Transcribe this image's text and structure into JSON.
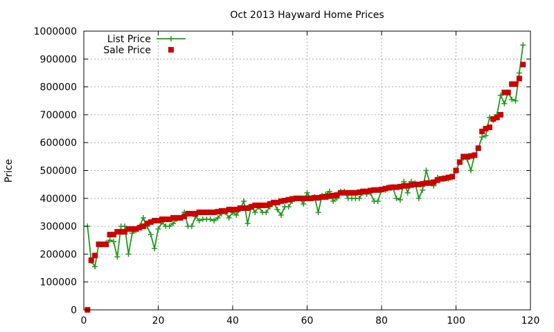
{
  "chart_data": {
    "type": "line",
    "title": "Oct 2013 Hayward Home Prices",
    "xlabel": "",
    "ylabel": "Price",
    "xlim": [
      0,
      120
    ],
    "ylim": [
      0,
      1000000
    ],
    "xticks": [
      0,
      20,
      40,
      60,
      80,
      100,
      120
    ],
    "yticks": [
      0,
      100000,
      200000,
      300000,
      400000,
      500000,
      600000,
      700000,
      800000,
      900000,
      1000000
    ],
    "grid": true,
    "legend_position": "top-left",
    "colors": {
      "list": "#1a9a1a",
      "sale": "#cc0000"
    },
    "series": [
      {
        "name": "List Price",
        "style": "line-plus",
        "x": [
          1,
          2,
          3,
          4,
          5,
          6,
          7,
          8,
          9,
          10,
          11,
          12,
          13,
          14,
          15,
          16,
          17,
          18,
          19,
          20,
          21,
          22,
          23,
          24,
          25,
          26,
          27,
          28,
          29,
          30,
          31,
          32,
          33,
          34,
          35,
          36,
          37,
          38,
          39,
          40,
          41,
          42,
          43,
          44,
          45,
          46,
          47,
          48,
          49,
          50,
          51,
          52,
          53,
          54,
          55,
          56,
          57,
          58,
          59,
          60,
          61,
          62,
          63,
          64,
          65,
          66,
          67,
          68,
          69,
          70,
          71,
          72,
          73,
          74,
          75,
          76,
          77,
          78,
          79,
          80,
          81,
          82,
          83,
          84,
          85,
          86,
          87,
          88,
          89,
          90,
          91,
          92,
          93,
          94,
          95,
          96,
          97,
          98,
          99,
          100,
          101,
          102,
          103,
          104,
          105,
          106,
          107,
          108,
          109,
          110,
          111,
          112,
          113,
          114,
          115,
          116,
          117,
          118
        ],
        "values": [
          300000,
          175000,
          155000,
          235000,
          235000,
          240000,
          250000,
          245000,
          190000,
          300000,
          300000,
          200000,
          275000,
          285000,
          300000,
          330000,
          300000,
          270000,
          220000,
          290000,
          315000,
          300000,
          300000,
          310000,
          325000,
          330000,
          350000,
          300000,
          300000,
          335000,
          320000,
          325000,
          325000,
          325000,
          320000,
          330000,
          345000,
          350000,
          330000,
          350000,
          340000,
          360000,
          390000,
          310000,
          370000,
          350000,
          370000,
          350000,
          350000,
          370000,
          385000,
          360000,
          340000,
          370000,
          370000,
          390000,
          400000,
          400000,
          380000,
          420000,
          400000,
          405000,
          350000,
          410000,
          415000,
          425000,
          390000,
          400000,
          425000,
          425000,
          400000,
          400000,
          400000,
          400000,
          420000,
          415000,
          420000,
          390000,
          390000,
          430000,
          430000,
          440000,
          440000,
          400000,
          395000,
          460000,
          420000,
          460000,
          455000,
          400000,
          430000,
          500000,
          455000,
          445000,
          475000,
          470000,
          470000,
          470000,
          475000,
          500000,
          530000,
          545000,
          540000,
          500000,
          555000,
          580000,
          620000,
          625000,
          690000,
          680000,
          700000,
          770000,
          740000,
          780000,
          755000,
          750000,
          850000,
          950000
        ]
      },
      {
        "name": "Sale Price",
        "style": "square",
        "x": [
          1,
          2,
          3,
          4,
          5,
          6,
          7,
          8,
          9,
          10,
          11,
          12,
          13,
          14,
          15,
          16,
          17,
          18,
          19,
          20,
          21,
          22,
          23,
          24,
          25,
          26,
          27,
          28,
          29,
          30,
          31,
          32,
          33,
          34,
          35,
          36,
          37,
          38,
          39,
          40,
          41,
          42,
          43,
          44,
          45,
          46,
          47,
          48,
          49,
          50,
          51,
          52,
          53,
          54,
          55,
          56,
          57,
          58,
          59,
          60,
          61,
          62,
          63,
          64,
          65,
          66,
          67,
          68,
          69,
          70,
          71,
          72,
          73,
          74,
          75,
          76,
          77,
          78,
          79,
          80,
          81,
          82,
          83,
          84,
          85,
          86,
          87,
          88,
          89,
          90,
          91,
          92,
          93,
          94,
          95,
          96,
          97,
          98,
          99,
          100,
          101,
          102,
          103,
          104,
          105,
          106,
          107,
          108,
          109,
          110,
          111,
          112,
          113,
          114,
          115,
          116,
          117,
          118
        ],
        "values": [
          0,
          178000,
          195000,
          235000,
          235000,
          235000,
          270000,
          270000,
          280000,
          280000,
          280000,
          290000,
          290000,
          290000,
          295000,
          300000,
          310000,
          315000,
          320000,
          320000,
          325000,
          325000,
          325000,
          330000,
          330000,
          330000,
          335000,
          345000,
          345000,
          345000,
          350000,
          350000,
          350000,
          350000,
          350000,
          352000,
          355000,
          355000,
          360000,
          360000,
          360000,
          365000,
          365000,
          365000,
          370000,
          375000,
          375000,
          375000,
          375000,
          380000,
          385000,
          385000,
          390000,
          392000,
          395000,
          398000,
          400000,
          400000,
          400000,
          400000,
          400000,
          402000,
          402000,
          405000,
          405000,
          408000,
          410000,
          412000,
          420000,
          420000,
          420000,
          420000,
          420000,
          422000,
          425000,
          425000,
          428000,
          430000,
          430000,
          432000,
          435000,
          438000,
          440000,
          440000,
          442000,
          445000,
          445000,
          448000,
          450000,
          450000,
          452000,
          455000,
          455000,
          458000,
          465000,
          470000,
          472000,
          475000,
          478000,
          500000,
          530000,
          550000,
          550000,
          552000,
          555000,
          580000,
          640000,
          650000,
          655000,
          685000,
          690000,
          700000,
          780000,
          780000,
          810000,
          810000,
          830000,
          880000
        ]
      }
    ]
  }
}
